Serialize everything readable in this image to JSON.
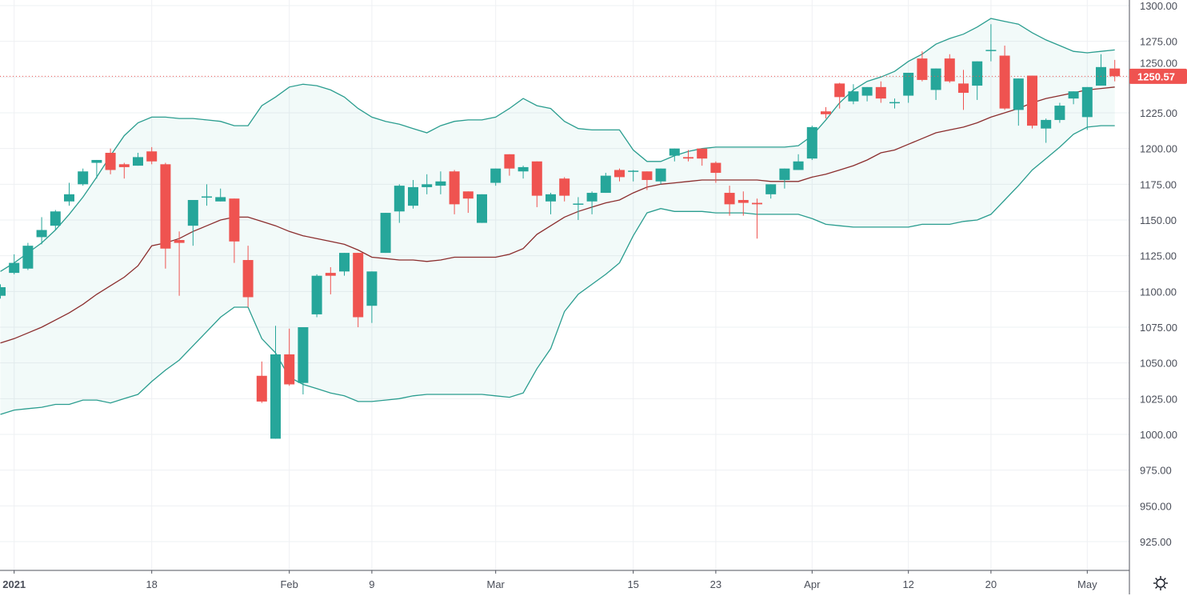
{
  "chart_data": {
    "type": "candlestick",
    "title": "",
    "colors": {
      "up": "#26a69a",
      "down": "#ef5350",
      "band": "#2a9d8f",
      "band_fill": "#26a69a",
      "basis": "#8b2d2d",
      "last_price": "#ef5350",
      "grid": "#eef0f3"
    },
    "ylim": [
      912,
      1305
    ],
    "y_ticks": [
      1300,
      1275,
      1250,
      1225,
      1200,
      1175,
      1150,
      1125,
      1100,
      1075,
      1050,
      1025,
      1000,
      975,
      950,
      925
    ],
    "x_ticks": [
      {
        "index": 1,
        "label": "2021",
        "bold": true
      },
      {
        "index": 11,
        "label": "18"
      },
      {
        "index": 21,
        "label": "Feb"
      },
      {
        "index": 27,
        "label": "9"
      },
      {
        "index": 36,
        "label": "Mar"
      },
      {
        "index": 46,
        "label": "15"
      },
      {
        "index": 52,
        "label": "23"
      },
      {
        "index": 59,
        "label": "Apr"
      },
      {
        "index": 66,
        "label": "12"
      },
      {
        "index": 72,
        "label": "20"
      },
      {
        "index": 79,
        "label": "May"
      }
    ],
    "grid": true,
    "last_price": "1250.57",
    "ohlc_fields": [
      "open",
      "high",
      "low",
      "close"
    ],
    "ohlc": [
      [
        1097,
        1105,
        1095,
        1103
      ],
      [
        1113,
        1126,
        1112,
        1120
      ],
      [
        1116,
        1134,
        1115,
        1132
      ],
      [
        1138,
        1152,
        1133,
        1143
      ],
      [
        1146,
        1157,
        1143,
        1156
      ],
      [
        1163,
        1176,
        1160,
        1168
      ],
      [
        1175,
        1186,
        1174,
        1184
      ],
      [
        1190,
        1192,
        1179,
        1192
      ],
      [
        1197,
        1200,
        1182,
        1185
      ],
      [
        1189,
        1190,
        1179,
        1187
      ],
      [
        1188,
        1197,
        1188,
        1194
      ],
      [
        1198,
        1201,
        1189,
        1191
      ],
      [
        1189,
        1190,
        1116,
        1130
      ],
      [
        1136,
        1142,
        1097,
        1134
      ],
      [
        1146,
        1164,
        1132,
        1164
      ],
      [
        1166,
        1175,
        1160,
        1166.5
      ],
      [
        1163,
        1172,
        1163,
        1166
      ],
      [
        1165,
        1165,
        1120,
        1135
      ],
      [
        1122,
        1132,
        1089,
        1096
      ],
      [
        1041,
        1051,
        1022,
        1023
      ],
      [
        997,
        1076,
        997,
        1056
      ],
      [
        1056,
        1074,
        1034,
        1035
      ],
      [
        1036,
        1075,
        1028,
        1075
      ],
      [
        1084,
        1112,
        1082,
        1111
      ],
      [
        1113,
        1117,
        1098,
        1111
      ],
      [
        1114,
        1127,
        1111,
        1127
      ],
      [
        1127,
        1127,
        1075,
        1082
      ],
      [
        1090,
        1114,
        1078,
        1114
      ],
      [
        1127,
        1155,
        1127,
        1155
      ],
      [
        1156,
        1175,
        1148,
        1174
      ],
      [
        1160,
        1178,
        1158,
        1173
      ],
      [
        1173,
        1182,
        1168,
        1175
      ],
      [
        1174,
        1184,
        1168,
        1177
      ],
      [
        1184,
        1185,
        1154,
        1161
      ],
      [
        1170,
        1170,
        1155,
        1165
      ],
      [
        1148,
        1168,
        1148,
        1168
      ],
      [
        1176,
        1186,
        1174,
        1186
      ],
      [
        1196,
        1196,
        1181,
        1186
      ],
      [
        1184,
        1188,
        1179,
        1187
      ],
      [
        1191,
        1191,
        1159,
        1167
      ],
      [
        1163,
        1169,
        1154,
        1168
      ],
      [
        1179,
        1180,
        1163,
        1167
      ],
      [
        1161,
        1166,
        1150,
        1161.5
      ],
      [
        1163,
        1170,
        1154,
        1169
      ],
      [
        1169,
        1183,
        1169,
        1181
      ],
      [
        1185,
        1186,
        1177,
        1180
      ],
      [
        1184,
        1185,
        1177,
        1184.5
      ],
      [
        1184,
        1184,
        1171,
        1178
      ],
      [
        1177,
        1186,
        1175,
        1186
      ],
      [
        1195,
        1200,
        1191,
        1200
      ],
      [
        1194,
        1199,
        1191,
        1193
      ],
      [
        1200,
        1200,
        1188,
        1193
      ],
      [
        1190,
        1191,
        1176,
        1183
      ],
      [
        1169,
        1174,
        1153,
        1161
      ],
      [
        1164,
        1170,
        1153,
        1162
      ],
      [
        1162,
        1165,
        1137,
        1161
      ],
      [
        1168,
        1175,
        1165,
        1175
      ],
      [
        1178,
        1186,
        1172,
        1186
      ],
      [
        1185,
        1196,
        1185,
        1191
      ],
      [
        1193,
        1216,
        1192,
        1215
      ],
      [
        1226,
        1229,
        1221,
        1224
      ],
      [
        1245.5,
        1246,
        1228,
        1236
      ],
      [
        1233,
        1245,
        1231,
        1240
      ],
      [
        1237,
        1243,
        1233,
        1243
      ],
      [
        1243,
        1247,
        1232,
        1235
      ],
      [
        1232,
        1235,
        1228,
        1232.5
      ],
      [
        1237,
        1253,
        1232,
        1253
      ],
      [
        1263,
        1268,
        1247,
        1248
      ],
      [
        1241,
        1256,
        1234,
        1256
      ],
      [
        1263,
        1266,
        1246,
        1247
      ],
      [
        1245.5,
        1255,
        1227,
        1239
      ],
      [
        1244,
        1261,
        1234,
        1261
      ],
      [
        1268.5,
        1287,
        1261,
        1269
      ],
      [
        1265,
        1272,
        1227,
        1228
      ],
      [
        1227,
        1249,
        1216,
        1249
      ],
      [
        1251,
        1251,
        1214,
        1216
      ],
      [
        1214,
        1221,
        1204,
        1220
      ],
      [
        1220,
        1232,
        1218,
        1230
      ],
      [
        1235,
        1240,
        1231,
        1240
      ],
      [
        1222,
        1243,
        1213,
        1243
      ],
      [
        1244,
        1266,
        1244,
        1257
      ],
      [
        1256,
        1262,
        1247,
        1250.57
      ]
    ],
    "bollinger": {
      "upper": [
        1114,
        1120,
        1127,
        1134,
        1143,
        1154,
        1166,
        1180,
        1195,
        1209,
        1218,
        1222,
        1222,
        1221,
        1221,
        1220,
        1219,
        1216,
        1216,
        1230,
        1236,
        1243,
        1245,
        1244,
        1241,
        1236,
        1228,
        1222,
        1219,
        1217,
        1214,
        1211,
        1216,
        1219,
        1220,
        1220,
        1222,
        1228,
        1235,
        1230,
        1228,
        1219,
        1214,
        1213,
        1213,
        1213,
        1199,
        1191,
        1191,
        1195,
        1198,
        1200,
        1201,
        1201,
        1201,
        1201,
        1201,
        1201,
        1202,
        1209,
        1220,
        1232,
        1241,
        1247,
        1250,
        1254,
        1261,
        1266,
        1273,
        1277,
        1280,
        1285,
        1291,
        1289,
        1287,
        1281,
        1276,
        1272,
        1268,
        1267,
        1268,
        1269
      ],
      "basis": [
        1064,
        1067,
        1071,
        1075,
        1080,
        1085,
        1091,
        1098,
        1104,
        1110,
        1118,
        1132,
        1134,
        1137,
        1142,
        1146,
        1150,
        1152,
        1152,
        1149,
        1146,
        1142,
        1139,
        1137,
        1135,
        1133,
        1129,
        1124,
        1123,
        1122,
        1122,
        1121,
        1122,
        1124,
        1124,
        1124,
        1124,
        1126,
        1130,
        1140,
        1146,
        1152,
        1156,
        1159,
        1162,
        1164,
        1169,
        1173,
        1175,
        1176,
        1177,
        1178,
        1178,
        1178,
        1178,
        1178,
        1177,
        1177,
        1177,
        1180,
        1182,
        1185,
        1188,
        1192,
        1197,
        1199,
        1203,
        1207,
        1211,
        1213,
        1215,
        1218,
        1222,
        1225,
        1228,
        1232,
        1235,
        1237,
        1239,
        1241,
        1242,
        1243
      ],
      "lower": [
        1014,
        1017,
        1018,
        1019,
        1021,
        1021,
        1024,
        1024,
        1022,
        1025,
        1028,
        1037,
        1045,
        1052,
        1062,
        1072,
        1082,
        1089,
        1089,
        1067,
        1057,
        1040,
        1035,
        1032,
        1029,
        1027,
        1023,
        1023,
        1024,
        1025,
        1027,
        1028,
        1028,
        1028,
        1028,
        1028,
        1027,
        1026,
        1029,
        1046,
        1060,
        1086,
        1098,
        1105,
        1112,
        1120,
        1139,
        1155,
        1158,
        1156,
        1156,
        1156,
        1155,
        1155,
        1155,
        1154,
        1154,
        1154,
        1154,
        1151,
        1147,
        1146,
        1145,
        1145,
        1145,
        1145,
        1145,
        1147,
        1147,
        1147,
        1149,
        1150,
        1154,
        1164,
        1174,
        1185,
        1193,
        1201,
        1210,
        1215,
        1216,
        1216
      ]
    }
  },
  "ui": {
    "settings_icon": "gear-icon"
  }
}
